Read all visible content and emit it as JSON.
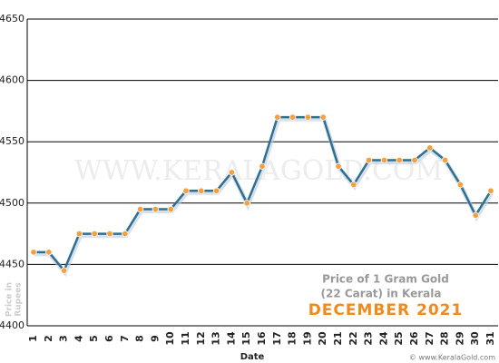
{
  "chart_data": {
    "type": "line",
    "title": "DECEMBER 2021",
    "subtitle_lines": [
      "Price of 1 Gram Gold",
      "(22 Carat) in Kerala"
    ],
    "xlabel": "Date",
    "ylabel_lines": [
      "Price in",
      "Rupees"
    ],
    "watermark": "WWW.KERALAGOLD.COM",
    "footer": "© www.KeralaGold.com",
    "categories": [
      "1",
      "2",
      "3",
      "4",
      "5",
      "6",
      "7",
      "8",
      "9",
      "10",
      "11",
      "12",
      "13",
      "14",
      "15",
      "16",
      "17",
      "18",
      "19",
      "20",
      "21",
      "22",
      "23",
      "24",
      "25",
      "26",
      "27",
      "28",
      "29",
      "30",
      "31"
    ],
    "series": [
      {
        "name": "Price",
        "color": "#2f6f8f",
        "marker_color": "#f5a040",
        "values": [
          4460,
          4460,
          4445,
          4475,
          4475,
          4475,
          4475,
          4495,
          4495,
          4495,
          4510,
          4510,
          4510,
          4525,
          4500,
          4530,
          4570,
          4570,
          4570,
          4570,
          4530,
          4515,
          4535,
          4535,
          4535,
          4535,
          4545,
          4535,
          4515,
          4490,
          4510
        ]
      }
    ],
    "ylim": [
      4400,
      4650
    ],
    "yticks": [
      4400,
      4450,
      4500,
      4550,
      4600,
      4650
    ],
    "grid": true
  }
}
